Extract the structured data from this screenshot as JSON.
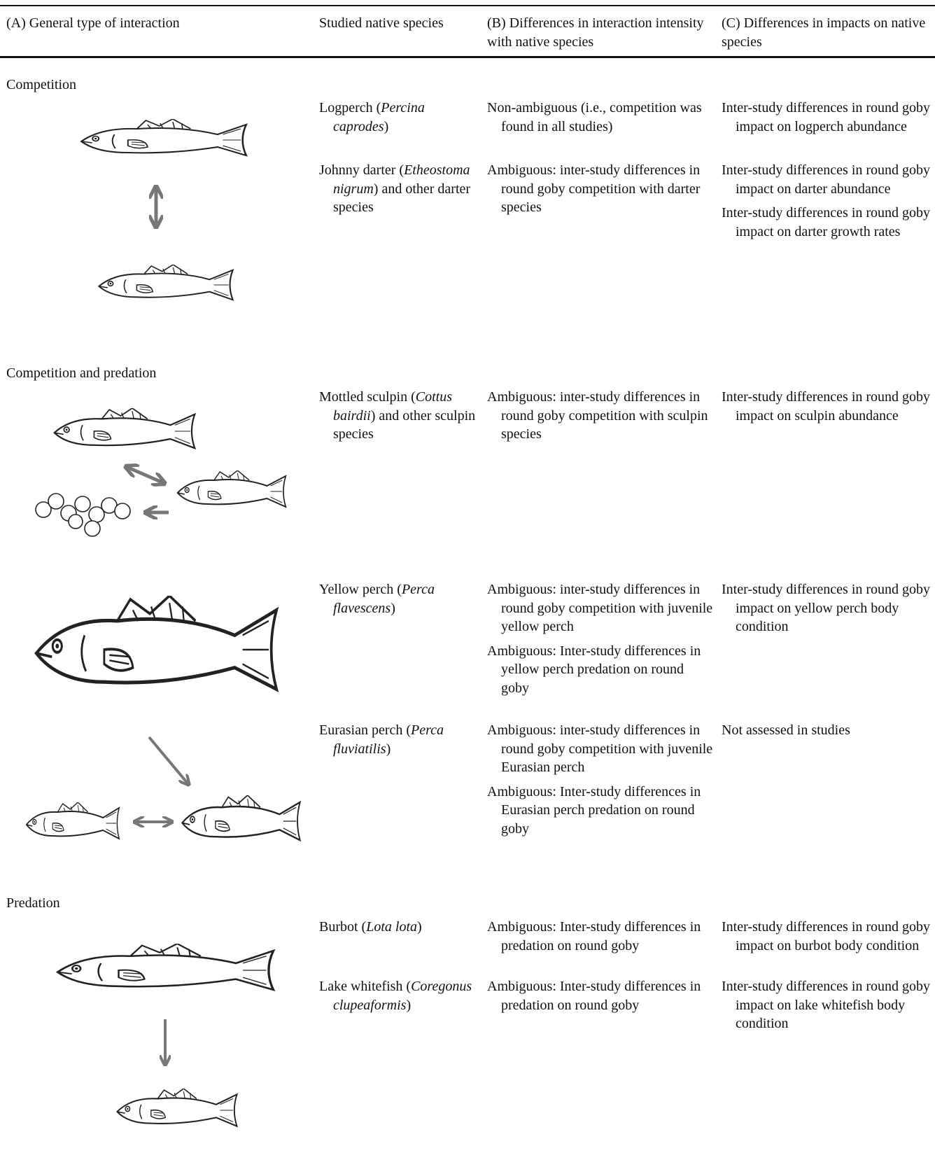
{
  "table": {
    "headers": [
      "(A) General type of interaction",
      "Studied native species",
      "(B) Differences in interaction intensity with native species",
      "(C) Differences in impacts on native species"
    ],
    "groups": [
      {
        "title": "Competition",
        "rows": [
          {
            "species": [
              "Logperch (",
              "Percina caprodes",
              ")"
            ],
            "interaction": [
              "Non-ambiguous (i.e., competition was found in all studies)"
            ],
            "impacts": [
              "Inter-study differences in round goby impact on logperch abundance"
            ]
          },
          {
            "species": [
              "Johnny darter (",
              "Etheostoma nigrum",
              ") and other darter species"
            ],
            "interaction": [
              "Ambiguous: inter-study differences in round goby competition with darter species"
            ],
            "impacts": [
              "Inter-study differences in round goby impact on darter abundance",
              "Inter-study differences in round goby impact on darter growth rates"
            ]
          }
        ]
      },
      {
        "title": "Competition and predation",
        "rows": [
          {
            "species": [
              "Mottled sculpin (",
              "Cottus bairdii",
              ") and other sculpin species"
            ],
            "interaction": [
              "Ambiguous: inter-study differences in round goby competition with sculpin species"
            ],
            "impacts": [
              "Inter-study differences in round goby impact on sculpin abundance"
            ]
          }
        ]
      },
      {
        "rows": [
          {
            "species": [
              "Yellow perch (",
              "Perca flavescens",
              ")"
            ],
            "interaction": [
              "Ambiguous: inter-study differences in round goby competition with juvenile yellow perch",
              "Ambiguous: Inter-study differences in yellow perch predation on round goby"
            ],
            "impacts": [
              "Inter-study differences in round goby impact on yellow perch body condition"
            ]
          },
          {
            "species": [
              "Eurasian perch (",
              "Perca fluviatilis",
              ")"
            ],
            "interaction": [
              "Ambiguous: inter-study differences in round goby competition with juvenile Eurasian perch",
              "Ambiguous: Inter-study differences in Eurasian perch predation on round goby"
            ],
            "impacts": [
              "Not assessed in studies"
            ]
          }
        ]
      },
      {
        "title": "Predation",
        "rows": [
          {
            "species": [
              "Burbot (",
              "Lota lota",
              ")"
            ],
            "interaction": [
              "Ambiguous: Inter-study differences in predation on round goby"
            ],
            "impacts": [
              "Inter-study differences in round goby impact on burbot body condition"
            ]
          },
          {
            "species": [
              "Lake whitefish (",
              "Coregonus clupeaformis",
              ")"
            ],
            "interaction": [
              "Ambiguous: Inter-study differences in predation on round goby"
            ],
            "impacts": [
              "Inter-study differences in round goby impact on lake whitefish body condition"
            ]
          }
        ]
      }
    ]
  }
}
